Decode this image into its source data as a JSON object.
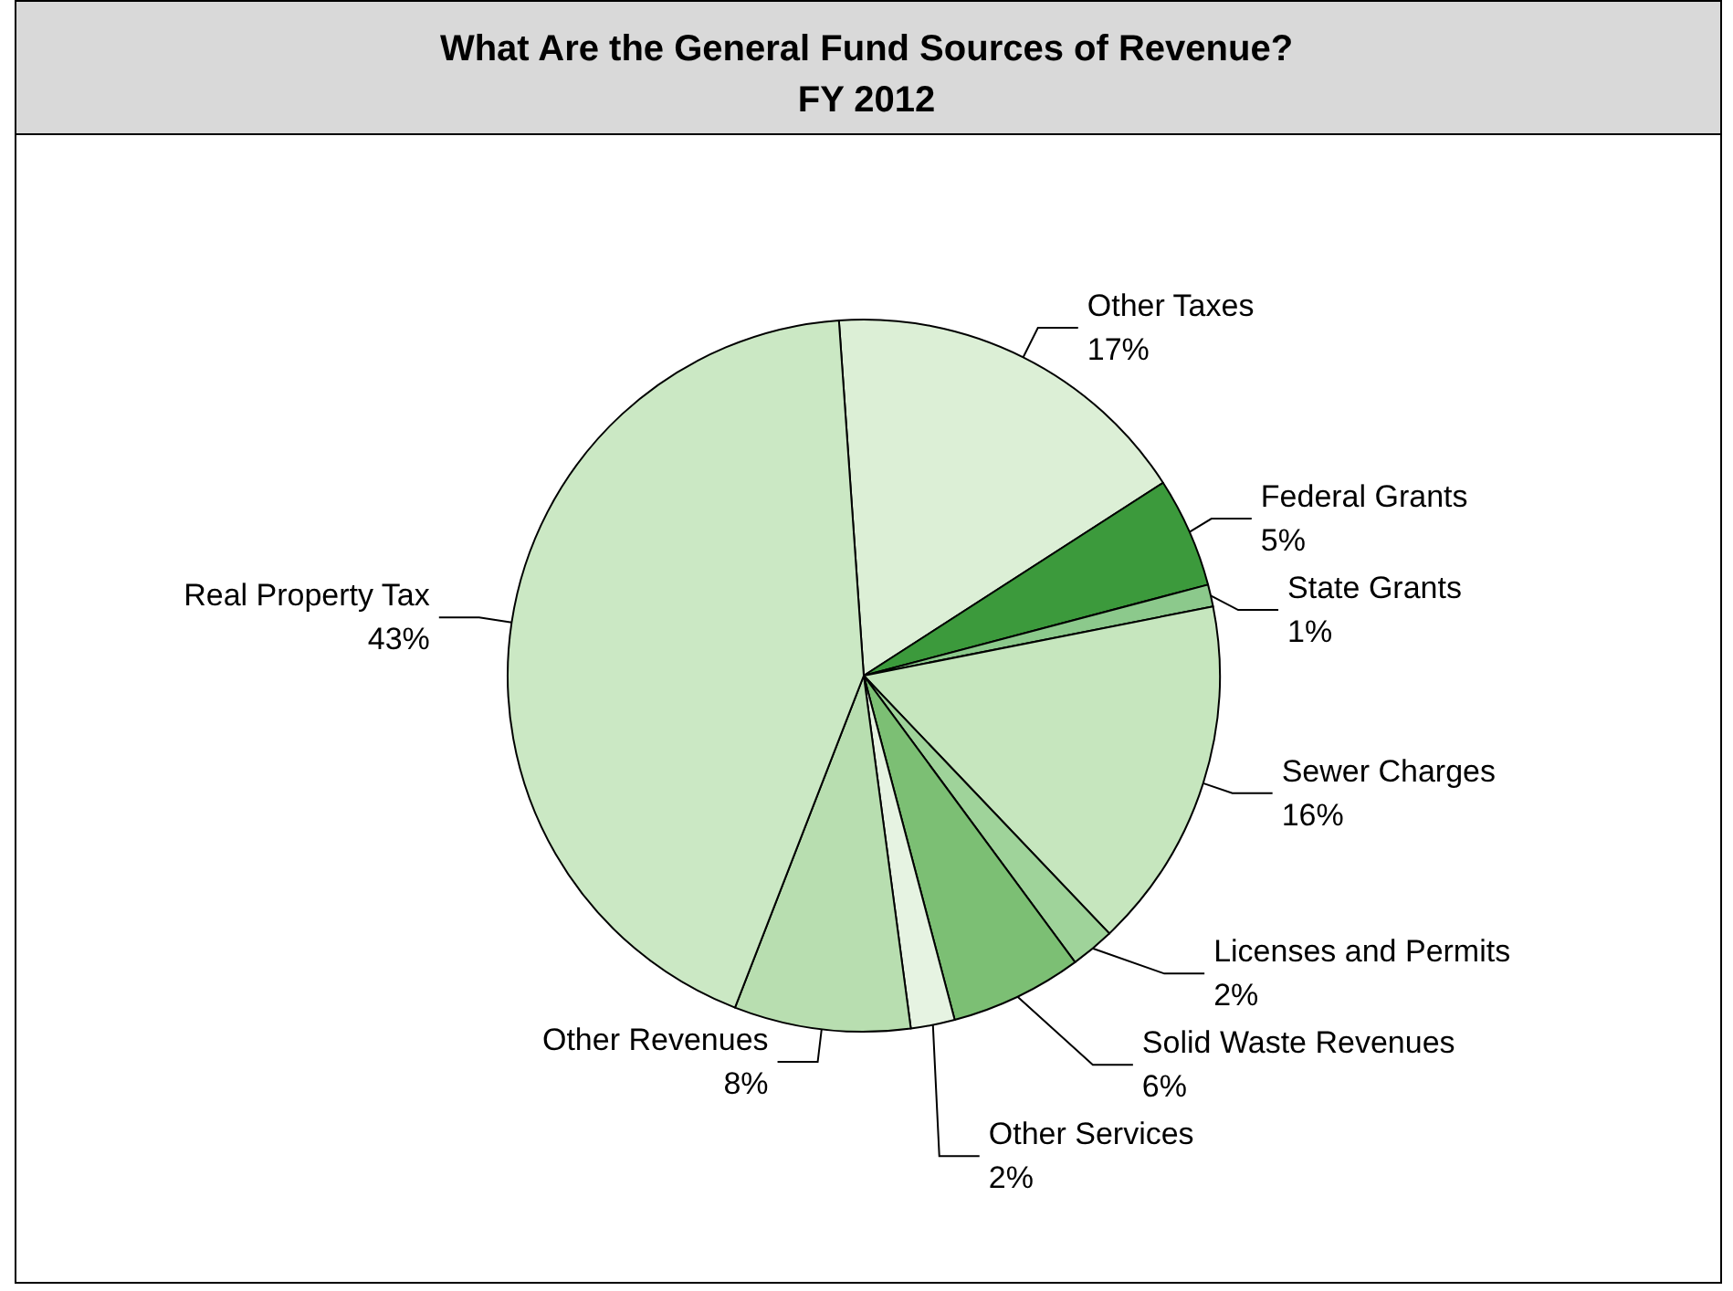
{
  "chart_data": {
    "type": "pie",
    "title": "What Are the General Fund Sources of Revenue?\nFY 2012",
    "categories": [
      "Other Taxes",
      "Federal Grants",
      "State Grants",
      "Sewer Charges",
      "Licenses and Permits",
      "Solid Waste Revenues",
      "Other Services",
      "Other Revenues",
      "Real Property Tax"
    ],
    "values": [
      17,
      5,
      1,
      16,
      2,
      6,
      2,
      8,
      43
    ],
    "value_labels": [
      "17%",
      "5%",
      "1%",
      "16%",
      "2%",
      "6%",
      "2%",
      "8%",
      "43%"
    ],
    "colors": [
      "#dcefd6",
      "#3c9a3c",
      "#8cc98c",
      "#c6e6be",
      "#9fd39a",
      "#7cbf74",
      "#e6f3e2",
      "#b8deb0",
      "#cbe8c4"
    ],
    "legend": false
  }
}
